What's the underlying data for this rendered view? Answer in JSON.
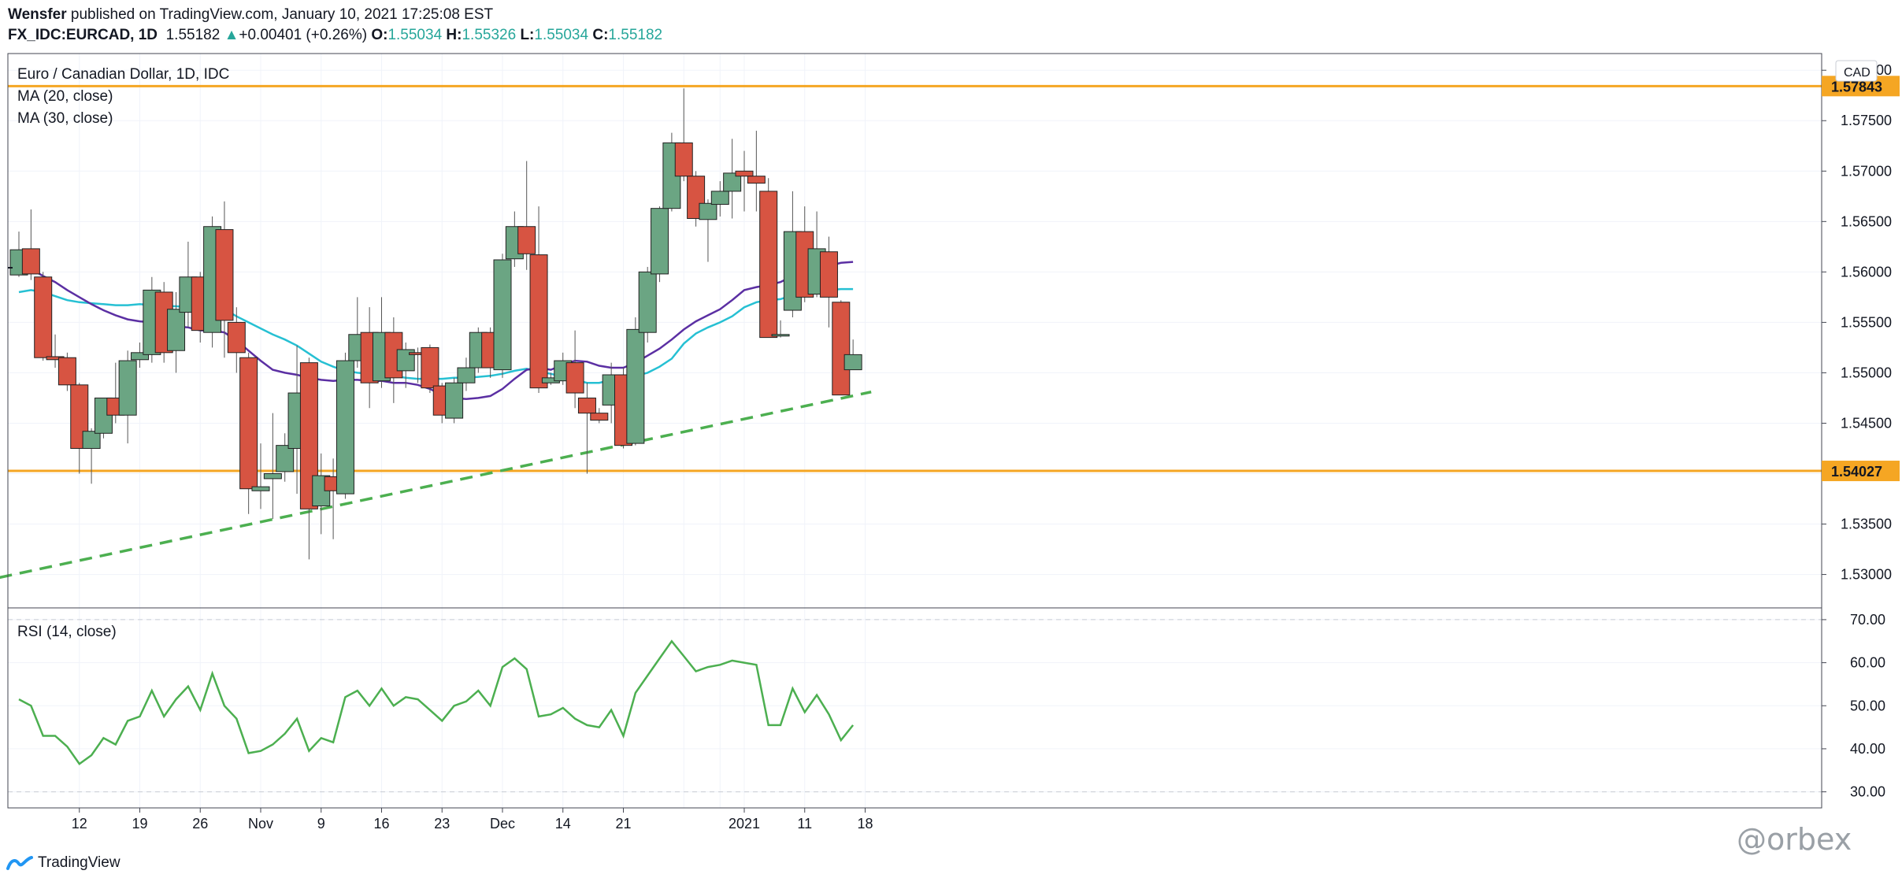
{
  "header": {
    "author": "Wensfer",
    "published": "published on TradingView.com, January 10, 2021 17:25:08 EST",
    "symbol": "FX_IDC:EURCAD, 1D",
    "last": "1.55182",
    "change_arrow": "▲",
    "change": "+0.00401 (+0.26%)",
    "o_label": "O:",
    "o_value": "1.55034",
    "h_label": "H:",
    "h_value": "1.55326",
    "l_label": "L:",
    "l_value": "1.55034",
    "c_label": "C:",
    "c_value": "1.55182"
  },
  "colors": {
    "up": "#6ba583",
    "down": "#d75442",
    "ma20": "#5b2fa3",
    "ma30": "#26c0d3",
    "trend": "#4caf50",
    "level": "#f5a623",
    "rsi": "#4caf50"
  },
  "footer": {
    "brand": "TradingView",
    "logo_icon": "tradingview-logo-icon",
    "watermark": "@orbex"
  },
  "chart_data": [
    {
      "type": "candlestick",
      "title": "Euro / Canadian Dollar, 1D, IDC",
      "indicators": [
        "MA (20, close)",
        "MA (30, close)"
      ],
      "currency": "CAD",
      "ylim": [
        1.527,
        1.5815
      ],
      "y_ticks": [
        1.53,
        1.535,
        1.54,
        1.545,
        1.55,
        1.555,
        1.56,
        1.565,
        1.57,
        1.575,
        1.58
      ],
      "x_ticks": [
        {
          "i": 5,
          "label": "12"
        },
        {
          "i": 10,
          "label": "19"
        },
        {
          "i": 15,
          "label": "26"
        },
        {
          "i": 20,
          "label": "Nov"
        },
        {
          "i": 25,
          "label": "9"
        },
        {
          "i": 30,
          "label": "16"
        },
        {
          "i": 35,
          "label": "23"
        },
        {
          "i": 40,
          "label": "Dec"
        },
        {
          "i": 45,
          "label": "14"
        },
        {
          "i": 50,
          "label": "21"
        },
        {
          "i": 55,
          "label": ""
        },
        {
          "i": 58,
          "label": ""
        },
        {
          "i": 60,
          "label": "2021"
        },
        {
          "i": 65,
          "label": "11"
        },
        {
          "i": 70,
          "label": "18"
        }
      ],
      "levels": [
        1.57843,
        1.54027
      ],
      "trendline": {
        "from": [
          -1.6,
          1.5297
        ],
        "to": [
          70.5,
          1.5481
        ]
      },
      "candles": [
        {
          "o": 1.5597,
          "h": 1.564,
          "l": 1.5595,
          "c": 1.5622
        },
        {
          "o": 1.5623,
          "h": 1.5662,
          "l": 1.5592,
          "c": 1.5598
        },
        {
          "o": 1.5595,
          "h": 1.56,
          "l": 1.5512,
          "c": 1.5515
        },
        {
          "o": 1.5516,
          "h": 1.5538,
          "l": 1.5505,
          "c": 1.5513
        },
        {
          "o": 1.5515,
          "h": 1.552,
          "l": 1.5482,
          "c": 1.5488
        },
        {
          "o": 1.5488,
          "h": 1.549,
          "l": 1.54,
          "c": 1.5425
        },
        {
          "o": 1.5425,
          "h": 1.5445,
          "l": 1.539,
          "c": 1.5442
        },
        {
          "o": 1.544,
          "h": 1.5475,
          "l": 1.5435,
          "c": 1.5475
        },
        {
          "o": 1.5475,
          "h": 1.551,
          "l": 1.545,
          "c": 1.5458
        },
        {
          "o": 1.5458,
          "h": 1.5522,
          "l": 1.543,
          "c": 1.5512
        },
        {
          "o": 1.5513,
          "h": 1.553,
          "l": 1.5505,
          "c": 1.552
        },
        {
          "o": 1.5518,
          "h": 1.5595,
          "l": 1.551,
          "c": 1.5582
        },
        {
          "o": 1.558,
          "h": 1.559,
          "l": 1.551,
          "c": 1.552
        },
        {
          "o": 1.5522,
          "h": 1.558,
          "l": 1.55,
          "c": 1.5563
        },
        {
          "o": 1.556,
          "h": 1.563,
          "l": 1.5545,
          "c": 1.5595
        },
        {
          "o": 1.5595,
          "h": 1.56,
          "l": 1.553,
          "c": 1.5542
        },
        {
          "o": 1.554,
          "h": 1.5655,
          "l": 1.5525,
          "c": 1.5645
        },
        {
          "o": 1.5642,
          "h": 1.567,
          "l": 1.5515,
          "c": 1.5552
        },
        {
          "o": 1.555,
          "h": 1.5565,
          "l": 1.55,
          "c": 1.552
        },
        {
          "o": 1.5515,
          "h": 1.552,
          "l": 1.536,
          "c": 1.5385
        },
        {
          "o": 1.5383,
          "h": 1.543,
          "l": 1.5365,
          "c": 1.5387
        },
        {
          "o": 1.5395,
          "h": 1.546,
          "l": 1.5355,
          "c": 1.54
        },
        {
          "o": 1.5402,
          "h": 1.544,
          "l": 1.5392,
          "c": 1.5428
        },
        {
          "o": 1.5425,
          "h": 1.5527,
          "l": 1.538,
          "c": 1.548
        },
        {
          "o": 1.551,
          "h": 1.5515,
          "l": 1.5315,
          "c": 1.5365
        },
        {
          "o": 1.5368,
          "h": 1.542,
          "l": 1.534,
          "c": 1.5398
        },
        {
          "o": 1.5397,
          "h": 1.5415,
          "l": 1.5335,
          "c": 1.5383
        },
        {
          "o": 1.538,
          "h": 1.552,
          "l": 1.5375,
          "c": 1.5512
        },
        {
          "o": 1.5512,
          "h": 1.5575,
          "l": 1.5505,
          "c": 1.5538
        },
        {
          "o": 1.554,
          "h": 1.5565,
          "l": 1.5465,
          "c": 1.549
        },
        {
          "o": 1.5492,
          "h": 1.5575,
          "l": 1.5485,
          "c": 1.554
        },
        {
          "o": 1.554,
          "h": 1.5555,
          "l": 1.547,
          "c": 1.5495
        },
        {
          "o": 1.5502,
          "h": 1.553,
          "l": 1.5485,
          "c": 1.5523
        },
        {
          "o": 1.552,
          "h": 1.5525,
          "l": 1.549,
          "c": 1.5518
        },
        {
          "o": 1.5525,
          "h": 1.5528,
          "l": 1.548,
          "c": 1.5485
        },
        {
          "o": 1.5487,
          "h": 1.549,
          "l": 1.545,
          "c": 1.5458
        },
        {
          "o": 1.5455,
          "h": 1.5495,
          "l": 1.545,
          "c": 1.549
        },
        {
          "o": 1.549,
          "h": 1.5515,
          "l": 1.5482,
          "c": 1.5505
        },
        {
          "o": 1.5505,
          "h": 1.5545,
          "l": 1.55,
          "c": 1.554
        },
        {
          "o": 1.554,
          "h": 1.5545,
          "l": 1.5495,
          "c": 1.5505
        },
        {
          "o": 1.5503,
          "h": 1.5618,
          "l": 1.5495,
          "c": 1.5612
        },
        {
          "o": 1.5613,
          "h": 1.566,
          "l": 1.5605,
          "c": 1.5645
        },
        {
          "o": 1.5645,
          "h": 1.571,
          "l": 1.5602,
          "c": 1.5618
        },
        {
          "o": 1.5617,
          "h": 1.5665,
          "l": 1.548,
          "c": 1.5485
        },
        {
          "o": 1.549,
          "h": 1.55,
          "l": 1.5488,
          "c": 1.5495
        },
        {
          "o": 1.5492,
          "h": 1.552,
          "l": 1.5488,
          "c": 1.5512
        },
        {
          "o": 1.551,
          "h": 1.5542,
          "l": 1.5465,
          "c": 1.548
        },
        {
          "o": 1.5475,
          "h": 1.549,
          "l": 1.54,
          "c": 1.546
        },
        {
          "o": 1.546,
          "h": 1.5465,
          "l": 1.545,
          "c": 1.5453
        },
        {
          "o": 1.5468,
          "h": 1.551,
          "l": 1.545,
          "c": 1.5498
        },
        {
          "o": 1.5498,
          "h": 1.5505,
          "l": 1.5425,
          "c": 1.5428
        },
        {
          "o": 1.543,
          "h": 1.5555,
          "l": 1.5428,
          "c": 1.5543
        },
        {
          "o": 1.554,
          "h": 1.5605,
          "l": 1.553,
          "c": 1.56
        },
        {
          "o": 1.5598,
          "h": 1.5665,
          "l": 1.559,
          "c": 1.5663
        },
        {
          "o": 1.5663,
          "h": 1.5738,
          "l": 1.566,
          "c": 1.5728
        },
        {
          "o": 1.5728,
          "h": 1.5782,
          "l": 1.569,
          "c": 1.5695
        },
        {
          "o": 1.5695,
          "h": 1.57,
          "l": 1.5645,
          "c": 1.5653
        },
        {
          "o": 1.5652,
          "h": 1.5672,
          "l": 1.561,
          "c": 1.5668
        },
        {
          "o": 1.5667,
          "h": 1.569,
          "l": 1.5655,
          "c": 1.568
        },
        {
          "o": 1.568,
          "h": 1.5732,
          "l": 1.5653,
          "c": 1.5698
        },
        {
          "o": 1.57,
          "h": 1.572,
          "l": 1.566,
          "c": 1.5695
        },
        {
          "o": 1.5695,
          "h": 1.574,
          "l": 1.566,
          "c": 1.5688
        },
        {
          "o": 1.568,
          "h": 1.5693,
          "l": 1.5535,
          "c": 1.5535
        },
        {
          "o": 1.5537,
          "h": 1.5552,
          "l": 1.5535,
          "c": 1.5538
        },
        {
          "o": 1.5562,
          "h": 1.568,
          "l": 1.5555,
          "c": 1.564
        },
        {
          "o": 1.564,
          "h": 1.5665,
          "l": 1.557,
          "c": 1.5575
        },
        {
          "o": 1.5578,
          "h": 1.566,
          "l": 1.5575,
          "c": 1.5623
        },
        {
          "o": 1.562,
          "h": 1.5635,
          "l": 1.5545,
          "c": 1.5575
        },
        {
          "o": 1.557,
          "h": 1.5572,
          "l": 1.5478,
          "c": 1.5478
        },
        {
          "o": 1.5503,
          "h": 1.5533,
          "l": 1.5503,
          "c": 1.5518
        }
      ],
      "ma20": [
        1.5605,
        1.5603,
        1.5596,
        1.559,
        1.5582,
        1.5575,
        1.5568,
        1.5562,
        1.5557,
        1.5553,
        1.5551,
        1.555,
        1.5548,
        1.5546,
        1.5545,
        1.5542,
        1.5542,
        1.554,
        1.5532,
        1.5522,
        1.5512,
        1.5503,
        1.55,
        1.5498,
        1.5495,
        1.5493,
        1.5492,
        1.5493,
        1.5493,
        1.5492,
        1.5492,
        1.549,
        1.549,
        1.5488,
        1.5484,
        1.5478,
        1.5475,
        1.5474,
        1.5475,
        1.5477,
        1.5484,
        1.5494,
        1.5503,
        1.5505,
        1.5503,
        1.5508,
        1.5512,
        1.5511,
        1.5507,
        1.5505,
        1.5505,
        1.551,
        1.5517,
        1.5524,
        1.5533,
        1.5543,
        1.5551,
        1.5557,
        1.5563,
        1.5572,
        1.5582,
        1.5585,
        1.5587,
        1.559,
        1.5596,
        1.56,
        1.5604,
        1.5606,
        1.5609,
        1.561
      ],
      "ma30": [
        1.558,
        1.5582,
        1.558,
        1.5576,
        1.5572,
        1.557,
        1.5569,
        1.5568,
        1.5567,
        1.5567,
        1.5568,
        1.5567,
        1.5566,
        1.5566,
        1.5565,
        1.5565,
        1.5564,
        1.5563,
        1.5556,
        1.555,
        1.5544,
        1.5538,
        1.5533,
        1.5527,
        1.5519,
        1.5511,
        1.5506,
        1.5502,
        1.55,
        1.5499,
        1.5498,
        1.5497,
        1.5495,
        1.5494,
        1.5494,
        1.5494,
        1.5495,
        1.5495,
        1.5496,
        1.5497,
        1.5499,
        1.5502,
        1.5504,
        1.5501,
        1.5499,
        1.5496,
        1.5493,
        1.549,
        1.549,
        1.5493,
        1.5495,
        1.5497,
        1.55,
        1.5506,
        1.5514,
        1.5529,
        1.5539,
        1.5545,
        1.555,
        1.5556,
        1.5565,
        1.557,
        1.5572,
        1.5573,
        1.5577,
        1.558,
        1.5582,
        1.5582,
        1.5583,
        1.5583
      ]
    },
    {
      "type": "line",
      "title": "RSI (14, close)",
      "ylim": [
        27,
        72
      ],
      "y_ticks": [
        30.0,
        40.0,
        50.0,
        60.0,
        70.0
      ],
      "dashed_levels": [
        70,
        30
      ],
      "values": [
        51.5,
        50,
        43,
        43,
        40.5,
        36.5,
        38.5,
        42.5,
        41,
        46.5,
        47.5,
        53.5,
        47.5,
        51.5,
        54.5,
        49,
        57.5,
        50,
        47,
        39,
        39.5,
        41,
        43.5,
        47,
        39.5,
        42.5,
        41.5,
        52,
        53.5,
        50,
        54,
        50,
        52,
        51.5,
        49,
        46.5,
        50,
        51,
        53.5,
        50,
        59,
        61,
        58.5,
        47.5,
        48,
        49.5,
        47,
        45.5,
        45,
        49,
        43,
        53,
        57,
        61,
        65,
        61.5,
        58,
        59,
        59.5,
        60.5,
        60,
        59.5,
        45.5,
        45.5,
        54,
        48.5,
        52.5,
        48,
        42,
        45.5
      ]
    }
  ]
}
